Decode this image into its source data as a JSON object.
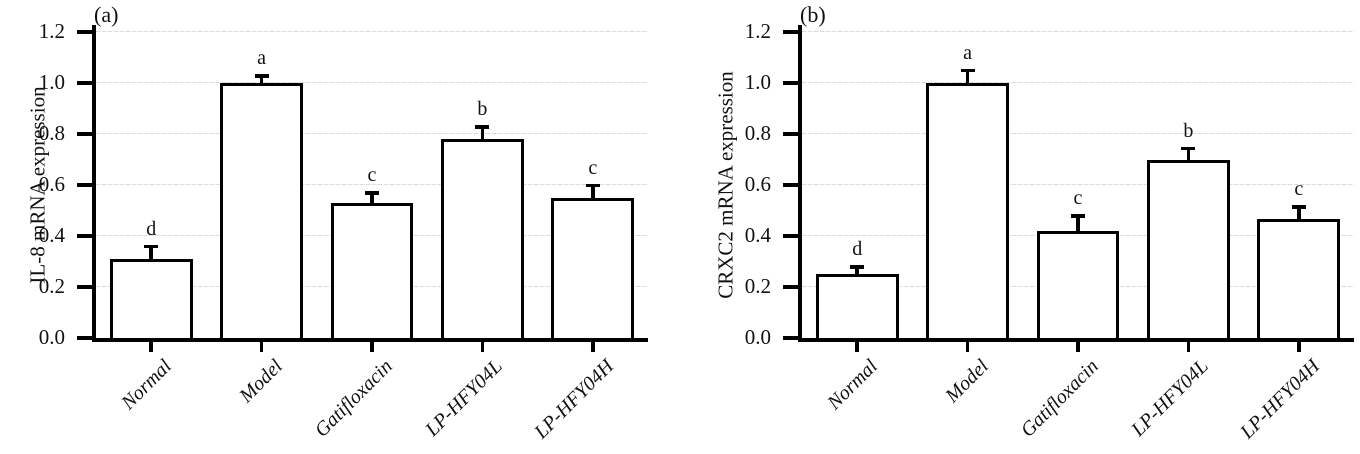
{
  "chart_data": [
    {
      "type": "bar",
      "panel_label": "(a)",
      "ylabel": "IL-8 mRNA expression",
      "xlabel": "",
      "categories": [
        "Normal",
        "Model",
        "Gatifloxacin",
        "LP-HFY04L",
        "LP-HFY04H"
      ],
      "values": [
        0.31,
        1.0,
        0.53,
        0.78,
        0.55
      ],
      "errors": [
        0.055,
        0.035,
        0.045,
        0.055,
        0.055
      ],
      "sig_letters": [
        "d",
        "a",
        "c",
        "b",
        "c"
      ],
      "ylim": [
        0,
        1.2
      ],
      "yticks": [
        0,
        0.2,
        0.4,
        0.6,
        0.8,
        1.0,
        1.2
      ],
      "grid": true,
      "legend": "none"
    },
    {
      "type": "bar",
      "panel_label": "(b)",
      "ylabel": "CRXC2 mRNA expression",
      "xlabel": "",
      "categories": [
        "Normal",
        "Model",
        "Gatifloxacin",
        "LP-HFY04L",
        "LP-HFY04H"
      ],
      "values": [
        0.25,
        1.0,
        0.42,
        0.7,
        0.465
      ],
      "errors": [
        0.035,
        0.055,
        0.065,
        0.05,
        0.055
      ],
      "sig_letters": [
        "d",
        "a",
        "c",
        "b",
        "c"
      ],
      "ylim": [
        0,
        1.2
      ],
      "yticks": [
        0,
        0.2,
        0.4,
        0.6,
        0.8,
        1.0,
        1.2
      ],
      "grid": true,
      "legend": "none"
    }
  ],
  "colors": {
    "axis": "#000000",
    "bar_fill": "#ffffff",
    "bar_border": "#000000",
    "grid": "#dcdcdc",
    "text": "#111111",
    "background": "#ffffff"
  }
}
